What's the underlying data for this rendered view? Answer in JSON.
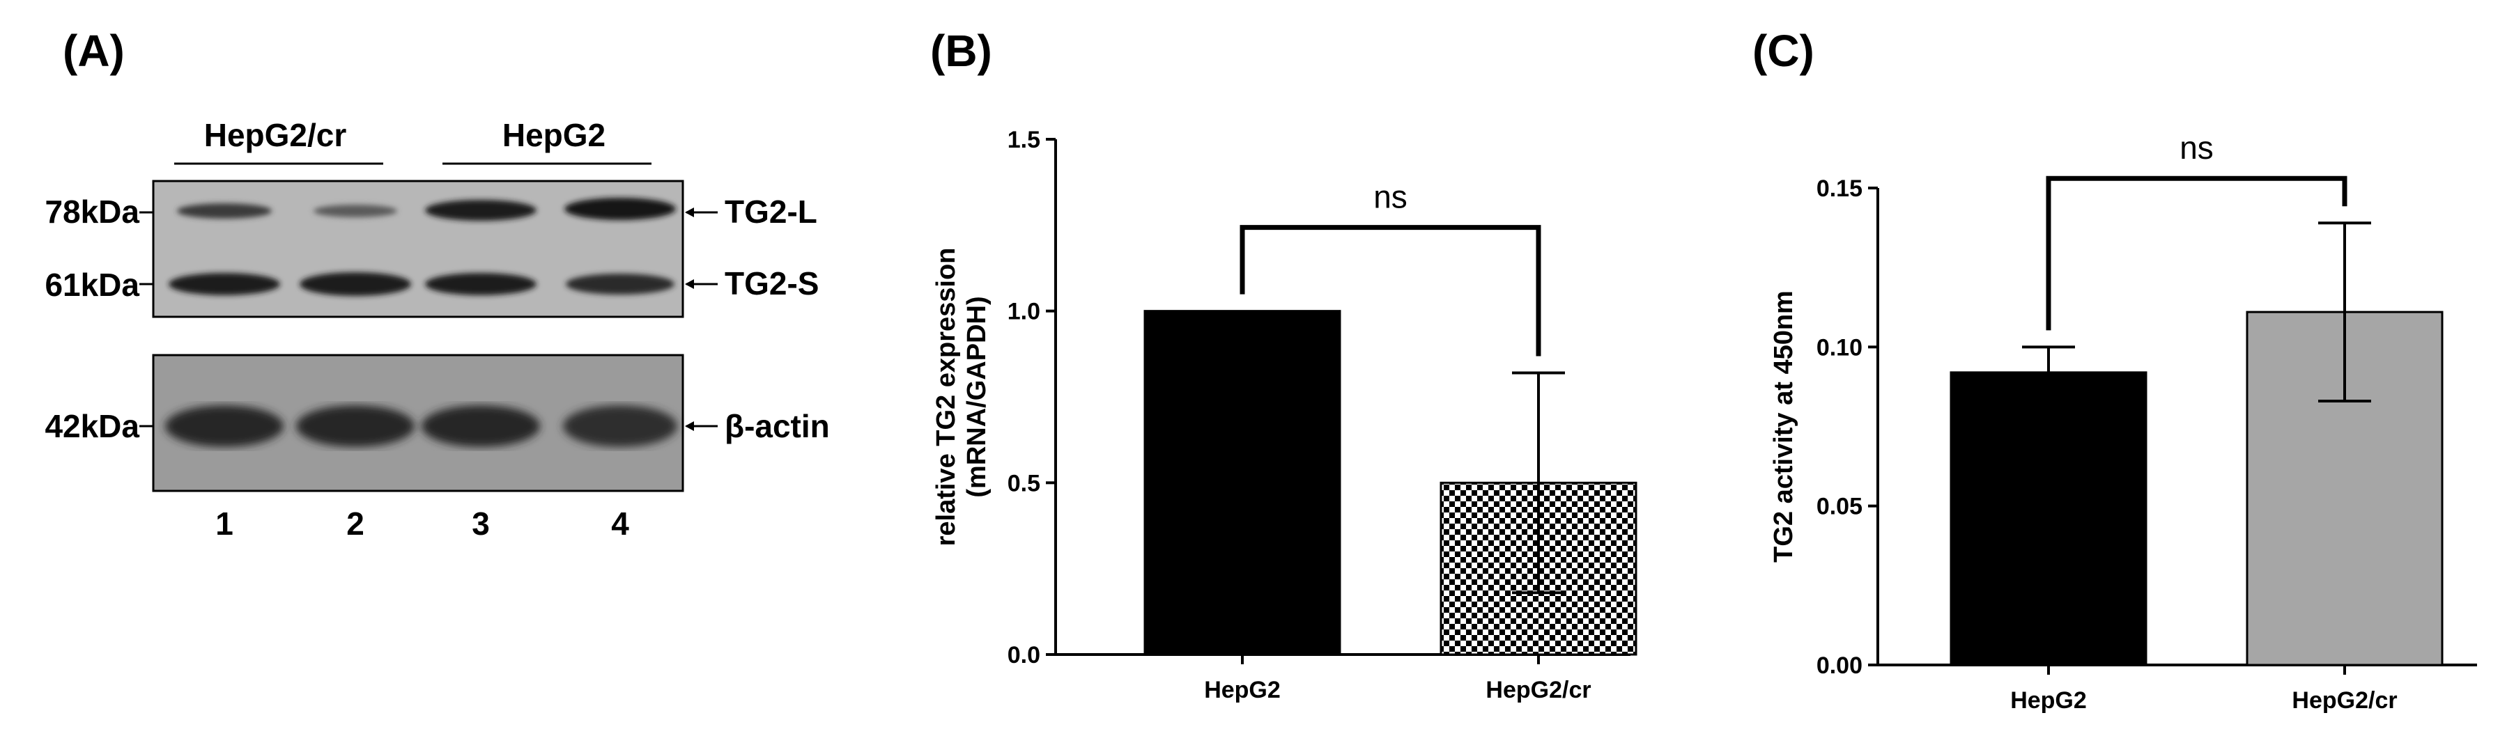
{
  "panels": {
    "a": {
      "letter": "(A)",
      "groups": [
        "HepG2/cr",
        "HepG2"
      ],
      "markers": [
        "78kDa",
        "61kDa",
        "42kDa"
      ],
      "bands": [
        "TG2-L",
        "TG2-S",
        "β-actin"
      ],
      "lanes": [
        "1",
        "2",
        "3",
        "4"
      ]
    },
    "b": {
      "letter": "(B)",
      "sig": "ns"
    },
    "c": {
      "letter": "(C)",
      "sig": "ns"
    }
  },
  "chart_data": [
    {
      "type": "bar",
      "categories": [
        "HepG2",
        "HepG2/cr"
      ],
      "values": [
        1.0,
        0.5
      ],
      "errors": [
        0,
        0.32
      ],
      "ylabel_line1": "relative TG2 expression",
      "ylabel_line2": "(mRNA/GAPDH)",
      "ylim": [
        0,
        1.5
      ],
      "yticks": [
        "0.0",
        "0.5",
        "1.0",
        "1.5"
      ],
      "colors": [
        "#000000",
        "checker"
      ]
    },
    {
      "type": "bar",
      "categories": [
        "HepG2",
        "HepG2/cr"
      ],
      "values": [
        0.092,
        0.111
      ],
      "errors": [
        0.008,
        0.028
      ],
      "ylabel": "TG2 activity at 450nm",
      "ylim": [
        0,
        0.15
      ],
      "yticks": [
        "0.00",
        "0.05",
        "0.10",
        "0.15"
      ],
      "colors": [
        "#000000",
        "#a6a6a6"
      ]
    }
  ]
}
